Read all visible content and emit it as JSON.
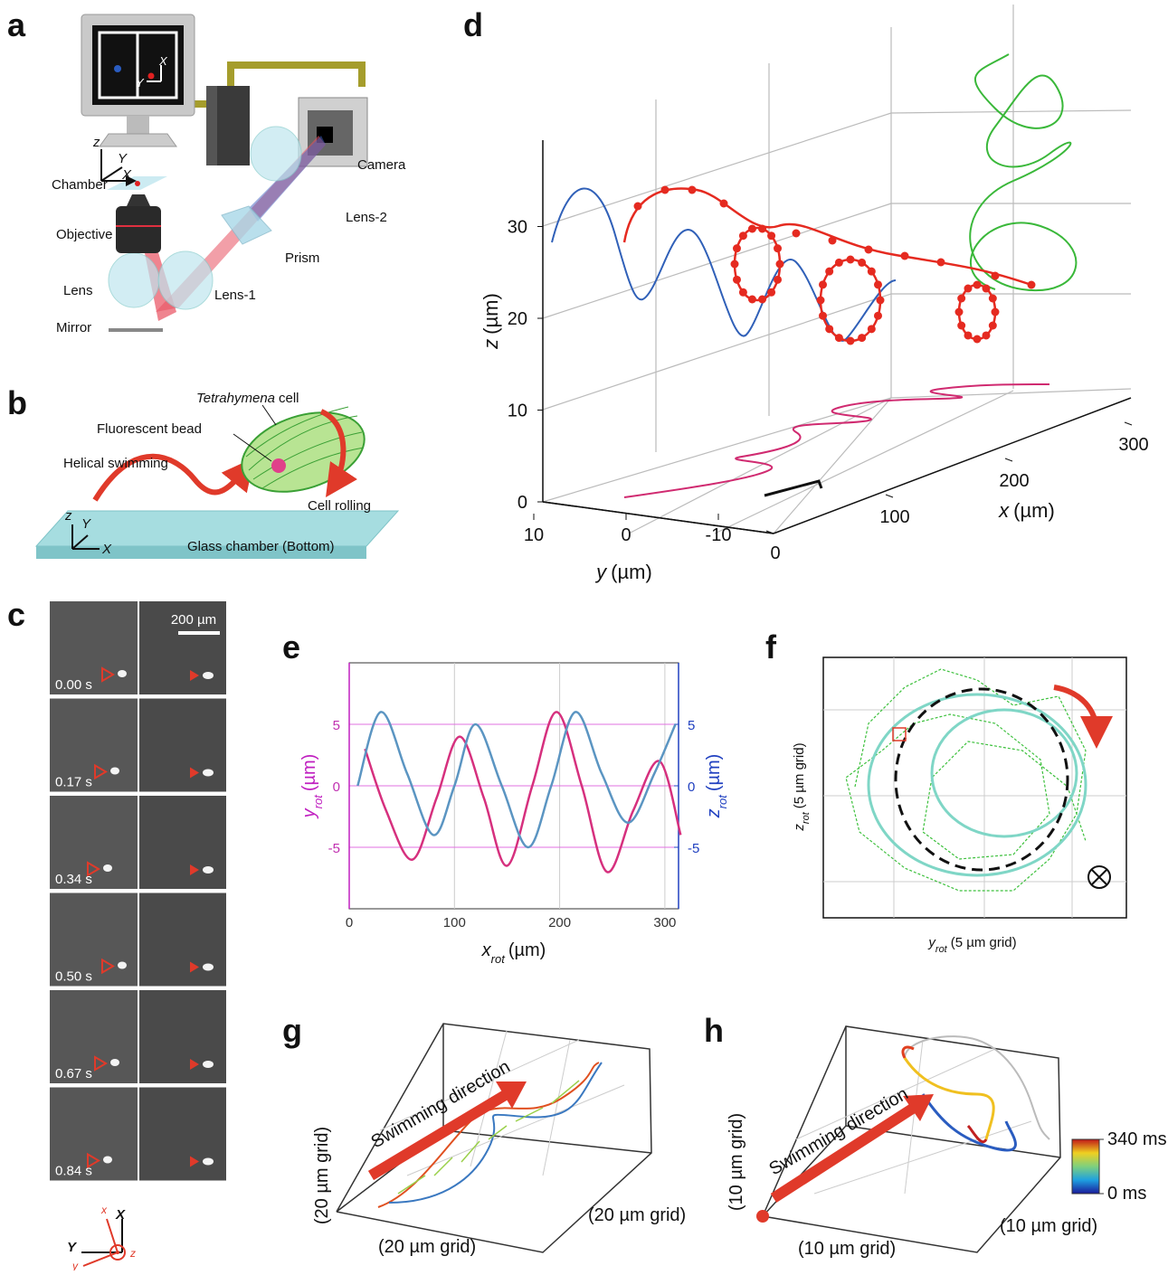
{
  "panel_labels": [
    "a",
    "b",
    "c",
    "d",
    "e",
    "f",
    "g",
    "h"
  ],
  "a": {
    "components": {
      "camera": "Camera",
      "chamber": "Chamber",
      "objective": "Objective",
      "lens2": "Lens-2",
      "prism": "Prism",
      "lens": "Lens",
      "lens1": "Lens-1",
      "mirror": "Mirror"
    },
    "axes": {
      "z": "z",
      "y": "Y",
      "x": "X"
    },
    "screen_axes": {
      "x": "X",
      "y": "Y"
    }
  },
  "b": {
    "cell_name": "Tetrahymena",
    "cell_word": "cell",
    "bead": "Fluorescent bead",
    "swimming": "Helical swimming",
    "rolling": "Cell rolling",
    "chamber": "Glass chamber (Bottom)",
    "axes": {
      "z": "z",
      "y": "Y",
      "x": "X"
    }
  },
  "c": {
    "scale_bar": "200 µm",
    "times": [
      "0.00 s",
      "0.17 s",
      "0.34 s",
      "0.50 s",
      "0.67 s",
      "0.84 s"
    ],
    "axes": {
      "lab_x": "X",
      "lab_y": "Y",
      "cell_x": "x",
      "cell_y": "y",
      "cell_z": "z"
    }
  },
  "d": {
    "z_label": {
      "var": "z",
      "unit": "(µm)"
    },
    "y_label": {
      "var": "y",
      "unit": "(µm)"
    },
    "x_label": {
      "var": "x",
      "unit": "(µm)"
    },
    "zticks": [
      0,
      10,
      20,
      30
    ],
    "yticks": [
      10,
      0,
      -10
    ],
    "xticks": [
      0,
      100,
      200,
      300
    ]
  },
  "chart_data": {
    "type": "line",
    "x_label": {
      "var": "x",
      "sub": "rot",
      "unit": "(µm)"
    },
    "y_label": {
      "var": "y",
      "sub": "rot",
      "unit": "(µm)"
    },
    "y2_label": {
      "var": "z",
      "sub": "rot",
      "unit": "(µm)"
    },
    "xlim": [
      0,
      313
    ],
    "ylim": [
      -10,
      10
    ],
    "y2lim": [
      -10,
      10
    ],
    "xticks": [
      0,
      100,
      200,
      300
    ],
    "yticks": [
      -5,
      0,
      5
    ],
    "y2ticks": [
      -5,
      0,
      5
    ],
    "series": [
      {
        "color": "#d6307e",
        "x": [
          15,
          35,
          60,
          83,
          105,
          128,
          150,
          174,
          197,
          221,
          245,
          270,
          295,
          315
        ],
        "values": [
          3,
          -2,
          -6,
          -1,
          4,
          -1,
          -6.5,
          0,
          6,
          0,
          -7,
          -2,
          2,
          -4
        ]
      },
      {
        "color": "#5b95c2",
        "axis": "y2",
        "x": [
          8,
          30,
          55,
          80,
          100,
          120,
          145,
          170,
          192,
          215,
          240,
          265,
          290,
          310
        ],
        "values": [
          0,
          6,
          1,
          -4,
          0,
          5,
          0,
          -5,
          0,
          6,
          1,
          -3,
          1,
          5
        ]
      }
    ]
  },
  "f": {
    "y_label": {
      "var": "z",
      "sub": "rot",
      "unit": "(5 µm grid)"
    },
    "x_label": {
      "var": "y",
      "sub": "rot",
      "unit": "(5 µm grid)"
    }
  },
  "g": {
    "direction": "Swimming direction",
    "grid_labels": [
      "(20 µm grid)",
      "(20 µm grid)",
      "(20 µm grid)"
    ]
  },
  "h": {
    "direction": "Swimming direction",
    "grid_labels": [
      "(10 µm grid)",
      "(10 µm grid)",
      "(10 µm grid)"
    ],
    "colorbar": [
      {
        "value": 340,
        "label": "340 ms"
      },
      {
        "value": 0,
        "label": "0 ms"
      }
    ]
  }
}
